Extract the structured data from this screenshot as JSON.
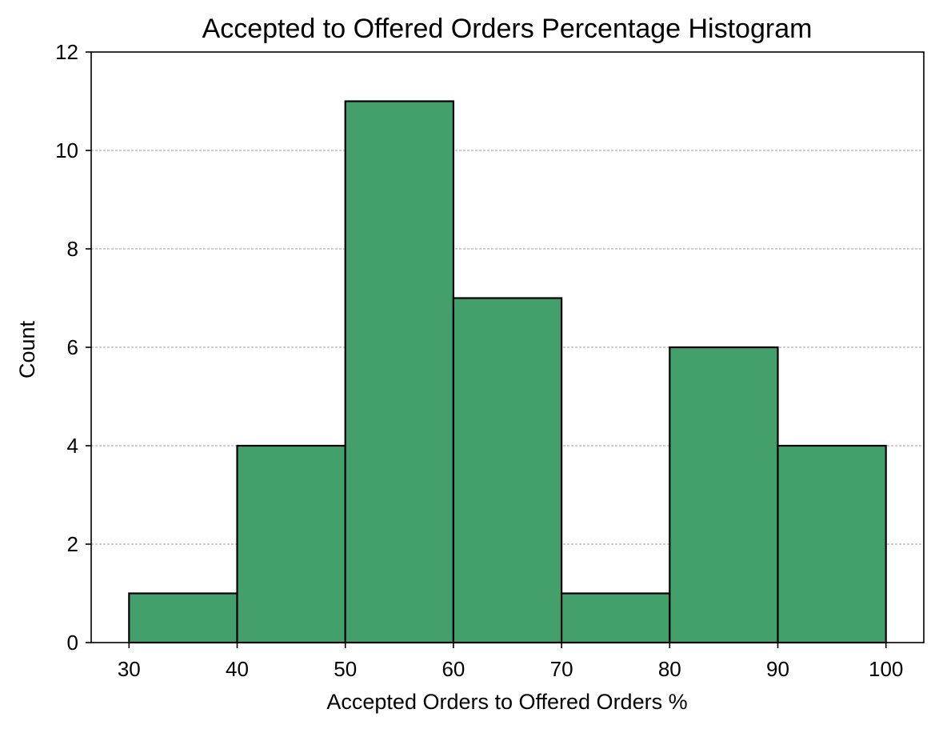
{
  "chart_data": {
    "type": "bar",
    "title": "Accepted to Offered Orders Percentage Histogram",
    "xlabel": "Accepted Orders to Offered Orders %",
    "ylabel": "Count",
    "bins": [
      {
        "start": 30,
        "end": 40,
        "count": 1
      },
      {
        "start": 40,
        "end": 50,
        "count": 4
      },
      {
        "start": 50,
        "end": 60,
        "count": 11
      },
      {
        "start": 60,
        "end": 70,
        "count": 7
      },
      {
        "start": 70,
        "end": 80,
        "count": 1
      },
      {
        "start": 80,
        "end": 90,
        "count": 6
      },
      {
        "start": 90,
        "end": 100,
        "count": 4
      }
    ],
    "xlim": [
      26.5,
      103.5
    ],
    "ylim": [
      0,
      12
    ],
    "xticks": [
      30,
      40,
      50,
      60,
      70,
      80,
      90,
      100
    ],
    "xtick_labels": [
      "30",
      "40",
      "50",
      "60",
      "70",
      "80",
      "90",
      "100"
    ],
    "yticks": [
      0,
      2,
      4,
      6,
      8,
      10,
      12
    ],
    "ytick_labels": [
      "0",
      "2",
      "4",
      "6",
      "8",
      "10",
      "12"
    ],
    "grid": {
      "axis": "y",
      "style": "dashed"
    },
    "legend": "none",
    "colors": {
      "bar_fill": "#43a06b",
      "bar_edge": "#000000",
      "grid": "#808080",
      "axis": "#000000",
      "background": "#ffffff"
    }
  }
}
